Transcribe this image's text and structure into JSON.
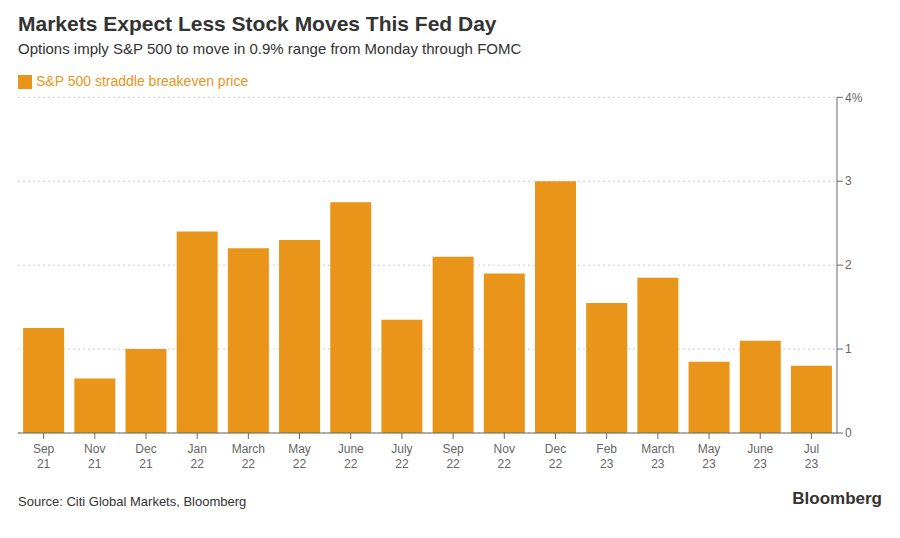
{
  "chart_data": {
    "type": "bar",
    "title": "Markets Expect Less Stock Moves This Fed Day",
    "subtitle": "Options imply S&P 500 to move in 0.9% range from Monday through FOMC",
    "annotations": [
      "Source: Citi Global Markets, Bloomberg",
      "Bloomberg"
    ],
    "categories": [
      "Sep\n21",
      "Nov\n21",
      "Dec\n21",
      "Jan\n22",
      "March\n22",
      "May\n22",
      "June\n22",
      "July\n22",
      "Sep\n22",
      "Nov\n22",
      "Dec\n22",
      "Feb\n23",
      "March\n23",
      "May\n23",
      "June\n23",
      "Jul\n23"
    ],
    "series": [
      {
        "name": "S&P 500 straddle breakeven price",
        "color": "#E8951A",
        "values": [
          1.25,
          0.65,
          1.0,
          2.4,
          2.2,
          2.3,
          2.75,
          1.35,
          2.1,
          1.9,
          3.0,
          1.55,
          1.85,
          0.85,
          1.1,
          0.8
        ]
      }
    ],
    "ylim": [
      0,
      4.0
    ],
    "yticks": [
      0,
      1,
      2,
      3,
      {
        "value": 4,
        "label": "4%"
      }
    ],
    "grid": true,
    "legend": "upper left"
  }
}
